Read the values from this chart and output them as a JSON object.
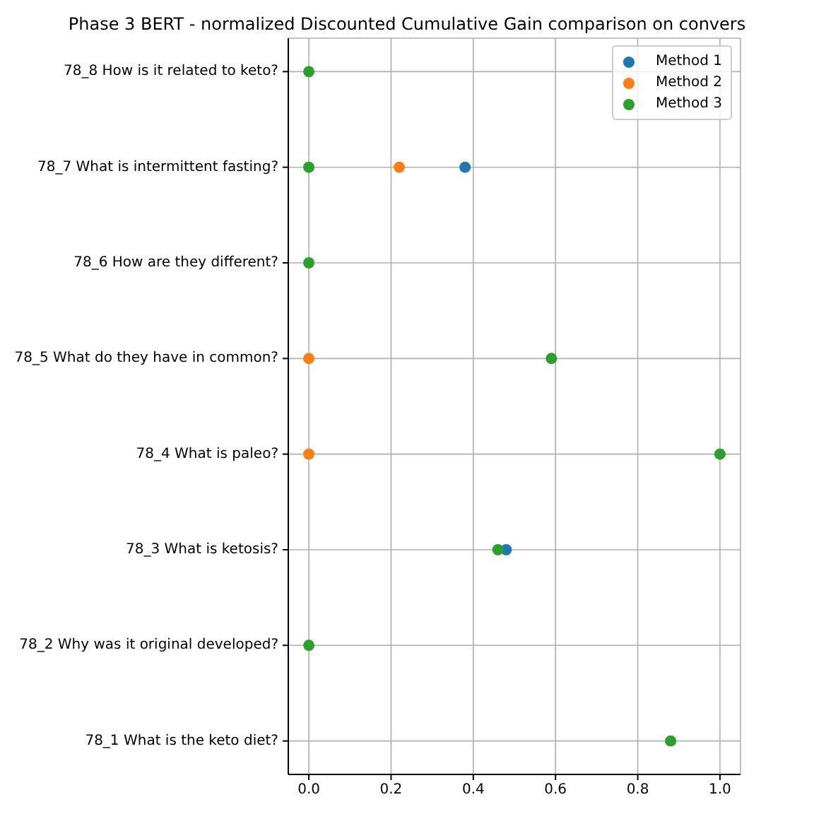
{
  "chart_data": {
    "type": "scatter",
    "title": "Phase 3 BERT - normalized Discounted Cumulative Gain comparison on convers",
    "orientation": "horizontal",
    "categories": [
      "78_8 How is it related to keto?",
      "78_7 What is intermittent fasting?",
      "78_6 How are they different?",
      "78_5 What do they have in common?",
      "78_4 What is paleo?",
      "78_3 What is ketosis?",
      "78_2 Why was it original developed?",
      "78_1 What is the keto diet?"
    ],
    "series": [
      {
        "name": "Method 1",
        "color": "#1f77b4",
        "values": [
          null,
          0.38,
          null,
          null,
          null,
          0.48,
          null,
          null
        ]
      },
      {
        "name": "Method 2",
        "color": "#ff7f0e",
        "values": [
          null,
          0.22,
          null,
          0,
          0,
          null,
          null,
          null
        ]
      },
      {
        "name": "Method 3",
        "color": "#2ca02c",
        "values": [
          0,
          0,
          0,
          0.59,
          1.0,
          0.46,
          0,
          0.88
        ]
      }
    ],
    "xlim": [
      -0.05,
      1.05
    ],
    "xticks": [
      {
        "value": 0,
        "label": "0.0"
      },
      0.2,
      0.4,
      0.6,
      0.8,
      {
        "value": 1,
        "label": "1.0"
      }
    ],
    "grid": true,
    "legend": "top right",
    "marker": "circle"
  }
}
